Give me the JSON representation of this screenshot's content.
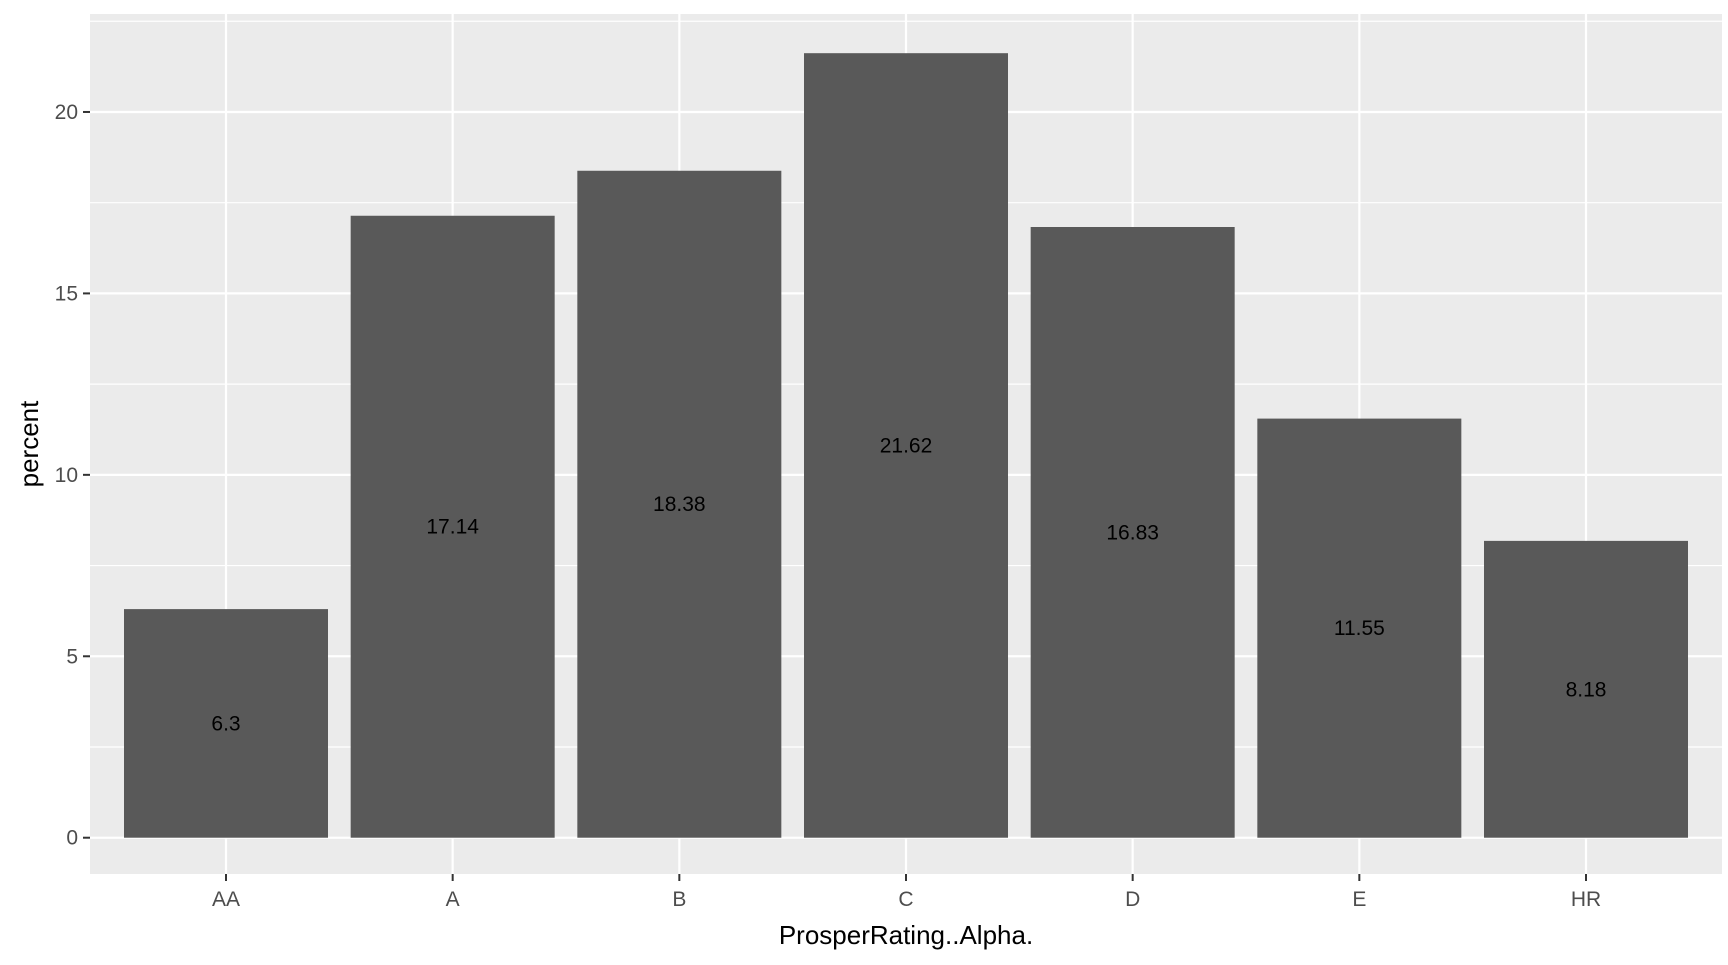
{
  "chart_data": {
    "type": "bar",
    "categories": [
      "AA",
      "A",
      "B",
      "C",
      "D",
      "E",
      "HR"
    ],
    "values": [
      6.3,
      17.14,
      18.38,
      21.62,
      16.83,
      11.55,
      8.18
    ],
    "labels": [
      "6.3",
      "17.14",
      "18.38",
      "21.62",
      "16.83",
      "11.55",
      "8.18"
    ],
    "xlabel": "ProsperRating..Alpha.",
    "ylabel": "percent",
    "ylim": [
      -1,
      22.7
    ],
    "yticks": [
      0,
      5,
      10,
      15,
      20
    ],
    "ytick_labels": [
      "0",
      "5",
      "10",
      "15",
      "20"
    ],
    "grid": true,
    "colors": {
      "panel_background": "#ebebeb",
      "grid_line": "#ffffff",
      "bar_fill": "#595959"
    }
  }
}
